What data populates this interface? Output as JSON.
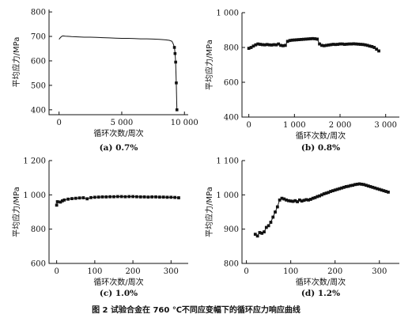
{
  "figure_caption": "图 2 试验合金在 760 ℃不同应变幅下的循环应力响应曲线",
  "chart_data": [
    {
      "id": "a",
      "type": "line",
      "caption": "(a) 0.7%",
      "xlabel": "循环次数/周次",
      "ylabel": "平均应力/MPa",
      "xlim": [
        -800,
        10300
      ],
      "ylim": [
        380,
        810
      ],
      "xticks": [
        0,
        5000,
        10000
      ],
      "xtick_labels": [
        "0",
        "5 000",
        "10 000"
      ],
      "yticks": [
        400,
        500,
        600,
        700,
        800
      ],
      "ytick_labels": [
        "400",
        "500",
        "600",
        "700",
        "800"
      ],
      "marker_stride": 0,
      "series": [
        {
          "x": [
            0,
            100,
            200,
            300,
            500,
            800,
            1000,
            1500,
            2000,
            2500,
            3000,
            3500,
            4000,
            4500,
            5000,
            5500,
            6000,
            6500,
            7000,
            7500,
            8000,
            8500,
            8800,
            9000,
            9100,
            9200,
            9250,
            9300,
            9350,
            9400
          ],
          "y": [
            688,
            695,
            700,
            702,
            701,
            700,
            699,
            698,
            697,
            697,
            696,
            695,
            694,
            693,
            692,
            692,
            691,
            690,
            690,
            689,
            688,
            686,
            684,
            680,
            670,
            655,
            630,
            595,
            510,
            400
          ]
        }
      ]
    },
    {
      "id": "b",
      "type": "scatter",
      "caption": "(b) 0.8%",
      "xlabel": "循环次数/周次",
      "ylabel": "平均应力/MPa",
      "xlim": [
        -150,
        3300
      ],
      "ylim": [
        400,
        1000
      ],
      "xticks": [
        0,
        1000,
        2000,
        3000
      ],
      "xtick_labels": [
        "0",
        "1 000",
        "2 000",
        "3 000"
      ],
      "yticks": [
        400,
        600,
        800,
        1000
      ],
      "ytick_labels": [
        "400",
        "600",
        "800",
        "1 000"
      ],
      "marker_stride": 1,
      "series": [
        {
          "x": [
            0,
            50,
            100,
            150,
            200,
            250,
            300,
            350,
            400,
            450,
            500,
            550,
            600,
            650,
            700,
            750,
            800,
            850,
            900,
            950,
            1000,
            1050,
            1100,
            1150,
            1200,
            1250,
            1300,
            1350,
            1400,
            1450,
            1500,
            1550,
            1600,
            1650,
            1700,
            1750,
            1800,
            1850,
            1900,
            1950,
            2000,
            2050,
            2100,
            2150,
            2200,
            2250,
            2300,
            2350,
            2400,
            2450,
            2500,
            2550,
            2600,
            2650,
            2700,
            2750,
            2800,
            2850
          ],
          "y": [
            795,
            800,
            808,
            815,
            820,
            818,
            816,
            815,
            817,
            815,
            814,
            816,
            815,
            820,
            812,
            810,
            812,
            835,
            840,
            842,
            843,
            844,
            845,
            846,
            847,
            848,
            849,
            850,
            851,
            850,
            848,
            820,
            812,
            810,
            812,
            814,
            816,
            818,
            817,
            818,
            820,
            820,
            818,
            819,
            820,
            820,
            821,
            820,
            819,
            818,
            817,
            815,
            812,
            808,
            805,
            800,
            790,
            780
          ]
        }
      ]
    },
    {
      "id": "c",
      "type": "scatter",
      "caption": "(c) 1.0%",
      "xlabel": "循环次数/周次",
      "ylabel": "平均应力/MPa",
      "xlim": [
        -20,
        345
      ],
      "ylim": [
        600,
        1200
      ],
      "xticks": [
        0,
        100,
        200,
        300
      ],
      "xtick_labels": [
        "0",
        "100",
        "200",
        "300"
      ],
      "yticks": [
        600,
        800,
        1000,
        1200
      ],
      "ytick_labels": [
        "600",
        "800",
        "1 000",
        "1 200"
      ],
      "marker_stride": 1,
      "series": [
        {
          "x": [
            0,
            2,
            10,
            15,
            20,
            30,
            40,
            50,
            60,
            70,
            80,
            90,
            100,
            110,
            120,
            130,
            140,
            150,
            160,
            170,
            180,
            190,
            200,
            210,
            220,
            230,
            240,
            250,
            260,
            270,
            280,
            290,
            300,
            310,
            320
          ],
          "y": [
            940,
            960,
            958,
            965,
            970,
            975,
            978,
            980,
            982,
            983,
            977,
            984,
            986,
            987,
            988,
            988,
            989,
            989,
            990,
            990,
            989,
            990,
            990,
            989,
            988,
            988,
            987,
            988,
            988,
            987,
            987,
            986,
            986,
            985,
            983
          ]
        }
      ]
    },
    {
      "id": "d",
      "type": "scatter",
      "caption": "(d) 1.2%",
      "xlabel": "循环次数/周次",
      "ylabel": "平均应力/MPa",
      "xlim": [
        -10,
        345
      ],
      "ylim": [
        800,
        1100
      ],
      "xticks": [
        0,
        100,
        200,
        300
      ],
      "xtick_labels": [
        "0",
        "100",
        "200",
        "300"
      ],
      "yticks": [
        800,
        900,
        1000,
        1100
      ],
      "ytick_labels": [
        "800",
        "900",
        "1 000",
        "1 100"
      ],
      "marker_stride": 1,
      "series": [
        {
          "x": [
            20,
            25,
            30,
            35,
            40,
            45,
            50,
            55,
            60,
            65,
            70,
            75,
            80,
            85,
            90,
            95,
            100,
            105,
            110,
            115,
            120,
            125,
            130,
            135,
            140,
            145,
            150,
            155,
            160,
            165,
            170,
            175,
            180,
            185,
            190,
            195,
            200,
            205,
            210,
            215,
            220,
            225,
            230,
            235,
            240,
            245,
            250,
            255,
            260,
            265,
            270,
            275,
            280,
            285,
            290,
            295,
            300,
            305,
            310,
            315,
            320
          ],
          "y": [
            885,
            880,
            890,
            888,
            892,
            905,
            910,
            920,
            935,
            950,
            965,
            985,
            990,
            988,
            985,
            983,
            982,
            981,
            983,
            980,
            985,
            982,
            984,
            986,
            985,
            987,
            990,
            992,
            995,
            997,
            1000,
            1003,
            1005,
            1007,
            1010,
            1012,
            1014,
            1016,
            1018,
            1020,
            1022,
            1024,
            1025,
            1027,
            1028,
            1030,
            1031,
            1032,
            1031,
            1030,
            1028,
            1026,
            1024,
            1022,
            1020,
            1018,
            1016,
            1014,
            1012,
            1010,
            1008
          ]
        }
      ]
    }
  ]
}
